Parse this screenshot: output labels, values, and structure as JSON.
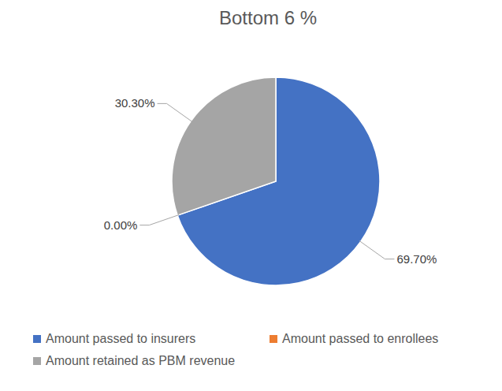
{
  "chart_data": {
    "type": "pie",
    "title": "Bottom 6 %",
    "categories": [
      "Amount passed to insurers",
      "Amount passed to enrollees",
      "Amount retained as PBM revenue"
    ],
    "values": [
      69.7,
      0,
      30.3
    ],
    "value_labels": [
      "69.70%",
      "0.00%",
      "30.30%"
    ],
    "colors": [
      "#4472c4",
      "#ed7d31",
      "#a5a5a5"
    ],
    "data_labels": true,
    "legend": "bottom"
  }
}
